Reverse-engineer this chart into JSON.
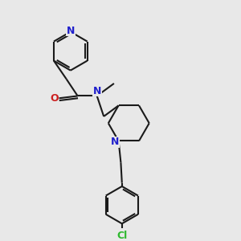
{
  "bg_color": "#e8e8e8",
  "bond_color": "#1a1a1a",
  "N_color": "#2020cc",
  "O_color": "#cc2020",
  "Cl_color": "#2db82d",
  "line_width": 1.5,
  "figsize": [
    3.0,
    3.0
  ],
  "dpi": 100,
  "xlim": [
    0,
    10
  ],
  "ylim": [
    0,
    10
  ]
}
